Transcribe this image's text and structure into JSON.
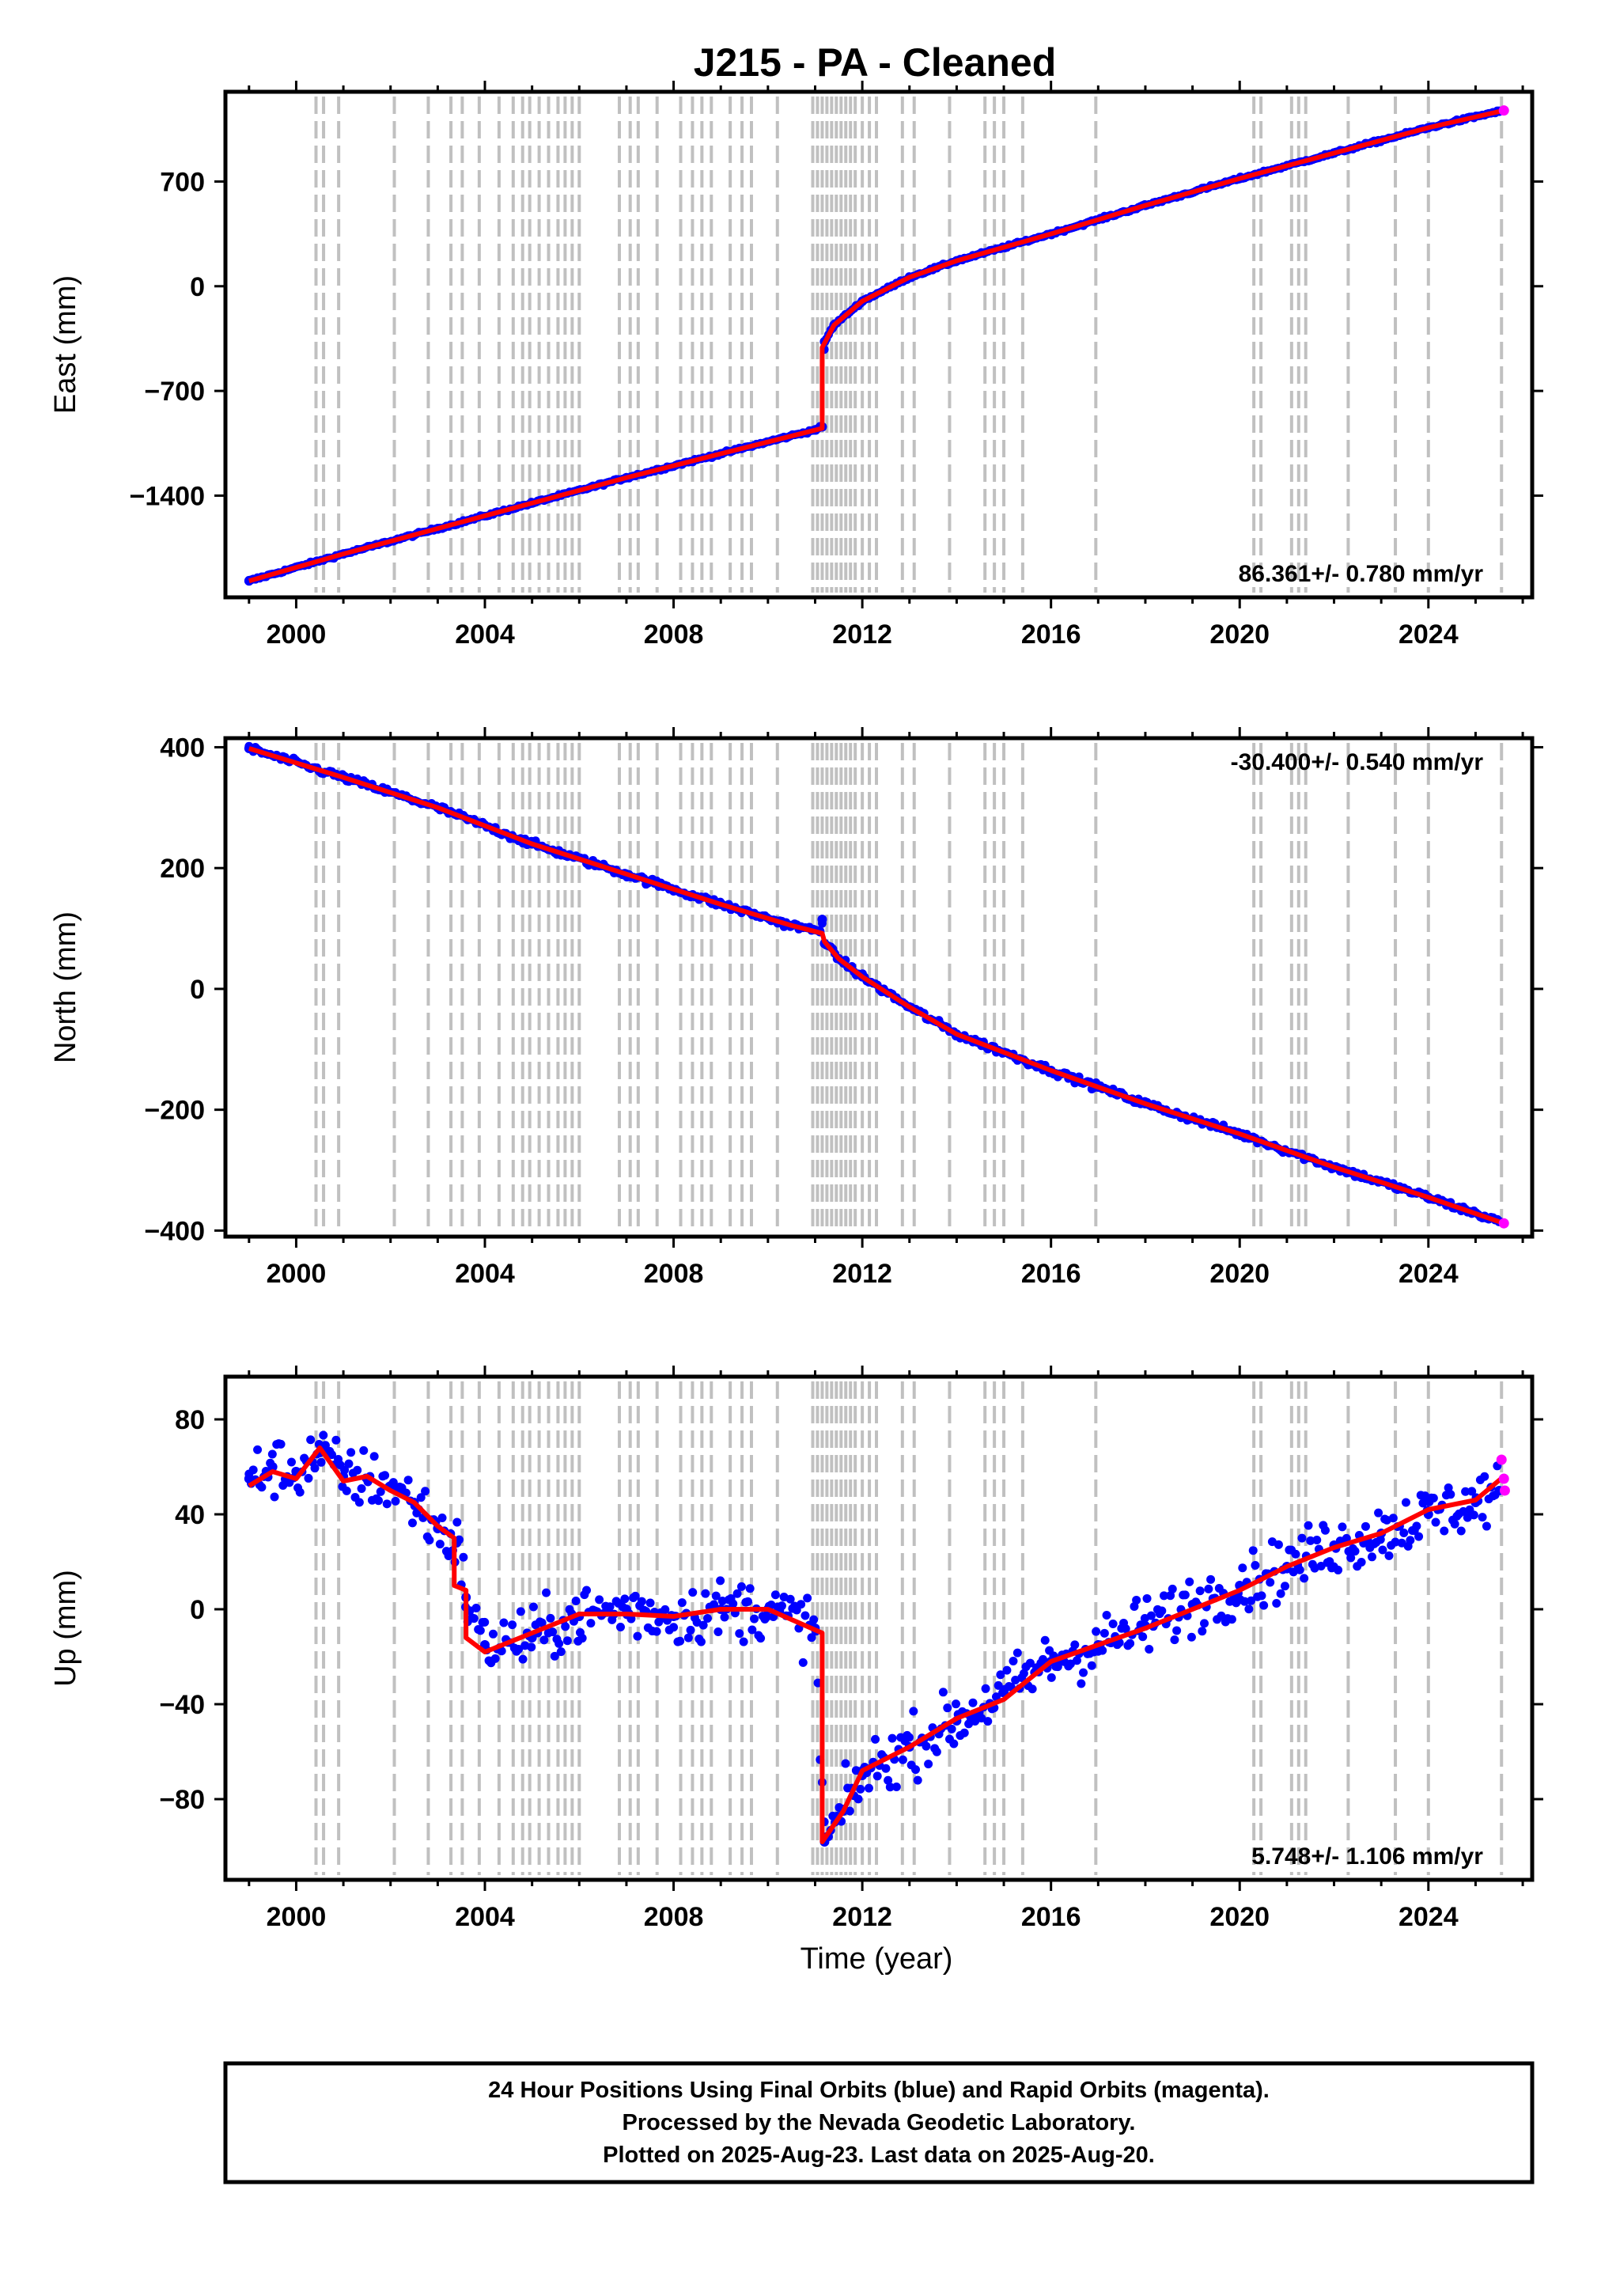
{
  "title": "J215  - PA - Cleaned",
  "xlabel": "Time (year)",
  "footer": {
    "lines": [
      "24 Hour Positions Using Final Orbits (blue) and Rapid Orbits (magenta).",
      "Processed by the Nevada Geodetic Laboratory.",
      "Plotted on 2025-Aug-23. Last data on 2025-Aug-20."
    ]
  },
  "colors": {
    "final_orbits": "#0000ff",
    "rapid_orbits": "#ff00ff",
    "model": "#ff0000",
    "event_lines": "#c0c0c0",
    "frame": "#000000"
  },
  "chart_data": [
    {
      "type": "scatter",
      "ylabel": "East (mm)",
      "xlim": [
        1998.5,
        2026.2
      ],
      "ylim": [
        -2080,
        1300
      ],
      "x_ticks": [
        2000,
        2004,
        2008,
        2012,
        2016,
        2020,
        2024
      ],
      "y_ticks": [
        700,
        0,
        -700,
        -1400
      ],
      "y_tick_labels": [
        "700",
        "0",
        "−700",
        "−1400"
      ],
      "rate_label": "86.361+/- 0.780 mm/yr",
      "rate_label_position": "bottom-right",
      "series": [
        {
          "role": "final_orbits",
          "x": [
            1999.0,
            2001.0,
            2003.0,
            2005.0,
            2007.0,
            2009.0,
            2011.0,
            2011.15,
            2011.2,
            2011.4,
            2012.0,
            2013.0,
            2014.0,
            2016.0,
            2018.0,
            2020.0,
            2022.0,
            2024.0,
            2025.5
          ],
          "y": [
            -1970,
            -1790,
            -1620,
            -1450,
            -1280,
            -1120,
            -960,
            -940,
            -370,
            -260,
            -100,
            60,
            170,
            350,
            540,
            720,
            890,
            1060,
            1170
          ]
        },
        {
          "role": "rapid_orbits",
          "x": [
            2025.6
          ],
          "y": [
            1175
          ]
        },
        {
          "role": "model",
          "x": [
            1999.0,
            2001.0,
            2003.0,
            2005.0,
            2007.0,
            2009.0,
            2011.15,
            2011.15,
            2011.4,
            2012.0,
            2013.0,
            2014.0,
            2016.0,
            2018.0,
            2020.0,
            2022.0,
            2024.0,
            2025.6
          ],
          "y": [
            -1970,
            -1790,
            -1620,
            -1450,
            -1280,
            -1120,
            -950,
            -410,
            -260,
            -100,
            60,
            170,
            350,
            540,
            720,
            890,
            1060,
            1175
          ]
        }
      ]
    },
    {
      "type": "scatter",
      "ylabel": "North (mm)",
      "xlim": [
        1998.5,
        2026.2
      ],
      "ylim": [
        -410,
        415
      ],
      "x_ticks": [
        2000,
        2004,
        2008,
        2012,
        2016,
        2020,
        2024
      ],
      "y_ticks": [
        400,
        200,
        0,
        -200,
        -400
      ],
      "y_tick_labels": [
        "400",
        "200",
        "0",
        "−200",
        "−400"
      ],
      "rate_label": "-30.400+/- 0.540 mm/yr",
      "rate_label_position": "top-right",
      "series": [
        {
          "role": "final_orbits",
          "x": [
            1999.0,
            2001.0,
            2003.0,
            2005.0,
            2007.0,
            2009.0,
            2010.5,
            2011.1,
            2011.15,
            2011.2,
            2011.5,
            2012.0,
            2013.0,
            2014.0,
            2016.0,
            2018.0,
            2020.0,
            2022.0,
            2024.0,
            2025.5
          ],
          "y": [
            398,
            350,
            300,
            240,
            190,
            140,
            105,
            95,
            115,
            75,
            50,
            20,
            -30,
            -75,
            -135,
            -190,
            -240,
            -295,
            -345,
            -385
          ]
        },
        {
          "role": "rapid_orbits",
          "x": [
            2025.6
          ],
          "y": [
            -388
          ]
        },
        {
          "role": "model",
          "x": [
            1999.0,
            2001.0,
            2003.0,
            2005.0,
            2007.0,
            2009.0,
            2010.5,
            2011.15,
            2011.2,
            2011.5,
            2012.0,
            2013.0,
            2014.0,
            2016.0,
            2018.0,
            2020.0,
            2022.0,
            2024.0,
            2025.6
          ],
          "y": [
            398,
            350,
            300,
            240,
            190,
            140,
            105,
            92,
            78,
            50,
            20,
            -30,
            -75,
            -135,
            -190,
            -240,
            -295,
            -345,
            -388
          ]
        }
      ]
    },
    {
      "type": "scatter",
      "ylabel": "Up (mm)",
      "xlabel": "Time (year)",
      "xlim": [
        1998.5,
        2026.2
      ],
      "ylim": [
        -114,
        98
      ],
      "x_ticks": [
        2000,
        2004,
        2008,
        2012,
        2016,
        2020,
        2024
      ],
      "y_ticks": [
        80,
        40,
        0,
        -40,
        -80
      ],
      "y_tick_labels": [
        "80",
        "40",
        "0",
        "−40",
        "−80"
      ],
      "rate_label": "5.748+/- 1.106 mm/yr",
      "rate_label_position": "bottom-right",
      "series": [
        {
          "role": "final_orbits",
          "x": [
            1999.0,
            1999.5,
            2000.0,
            2000.5,
            2001.0,
            2001.5,
            2002.0,
            2002.5,
            2003.0,
            2003.4,
            2003.6,
            2004.0,
            2005.0,
            2006.0,
            2007.0,
            2008.0,
            2009.0,
            2010.0,
            2011.0,
            2011.2,
            2011.6,
            2012.0,
            2013.0,
            2014.0,
            2015.0,
            2016.0,
            2017.0,
            2018.0,
            2019.0,
            2020.0,
            2021.0,
            2022.0,
            2023.0,
            2024.0,
            2025.0,
            2025.5
          ],
          "y": [
            55,
            60,
            58,
            66,
            56,
            55,
            52,
            45,
            34,
            28,
            5,
            -15,
            -12,
            -3,
            0,
            -3,
            0,
            0,
            -8,
            -98,
            -85,
            -70,
            -58,
            -47,
            -35,
            -22,
            -15,
            -7,
            2,
            10,
            18,
            27,
            32,
            40,
            45,
            50
          ]
        },
        {
          "role": "rapid_orbits",
          "x": [
            2025.55,
            2025.6,
            2025.62
          ],
          "y": [
            63,
            55,
            50
          ]
        },
        {
          "role": "model",
          "x": [
            1999.0,
            1999.5,
            2000.0,
            2000.5,
            2001.0,
            2001.5,
            2002.0,
            2002.5,
            2003.0,
            2003.35,
            2003.35,
            2003.6,
            2003.6,
            2004.0,
            2005.0,
            2006.0,
            2007.0,
            2008.0,
            2009.0,
            2010.0,
            2011.15,
            2011.15,
            2011.6,
            2012.0,
            2013.0,
            2014.0,
            2015.0,
            2016.0,
            2017.0,
            2018.0,
            2019.0,
            2020.0,
            2021.0,
            2022.0,
            2023.0,
            2024.0,
            2025.0,
            2025.6
          ],
          "y": [
            52,
            58,
            55,
            68,
            54,
            56,
            50,
            45,
            35,
            30,
            10,
            8,
            -12,
            -18,
            -10,
            -2,
            -2,
            -3,
            0,
            0,
            -10,
            -98,
            -85,
            -68,
            -58,
            -46,
            -38,
            -22,
            -15,
            -8,
            0,
            8,
            18,
            26,
            32,
            42,
            46,
            56
          ]
        }
      ]
    }
  ],
  "event_lines_x": [
    2000.42,
    2000.58,
    2000.9,
    2002.08,
    2002.8,
    2003.28,
    2003.52,
    2003.88,
    2004.3,
    2004.6,
    2004.8,
    2004.95,
    2005.15,
    2005.35,
    2005.55,
    2005.7,
    2005.85,
    2006.0,
    2006.85,
    2007.08,
    2007.25,
    2007.65,
    2008.15,
    2008.4,
    2008.6,
    2008.8,
    2009.2,
    2009.45,
    2009.65,
    2010.2,
    2010.95,
    2011.05,
    2011.15,
    2011.25,
    2011.35,
    2011.45,
    2011.55,
    2011.65,
    2011.75,
    2011.85,
    2012.0,
    2012.15,
    2012.3,
    2012.85,
    2013.1,
    2013.85,
    2014.6,
    2014.8,
    2015.0,
    2015.4,
    2016.95,
    2020.3,
    2020.45,
    2021.1,
    2021.25,
    2021.4,
    2022.3,
    2023.3,
    2024.0,
    2025.55
  ]
}
